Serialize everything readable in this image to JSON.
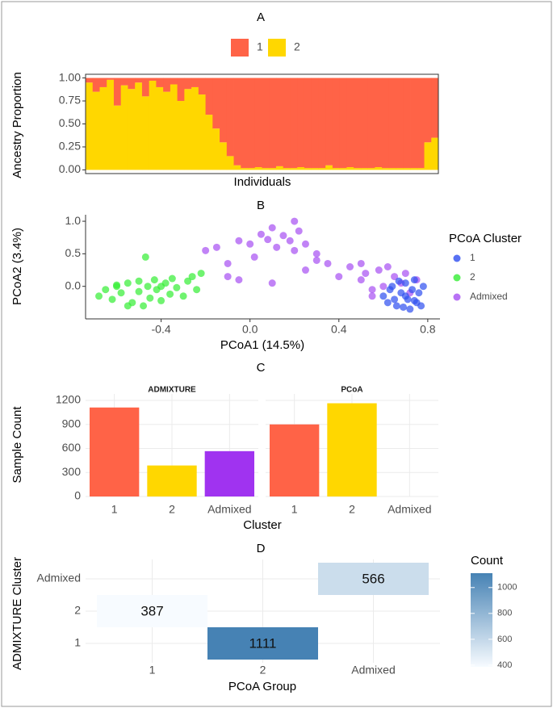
{
  "chart_data": [
    {
      "type": "stacked_bar",
      "title": "A",
      "ylabel": "Ancestry Proportion",
      "xlabel": "Individuals",
      "categories": [
        null,
        null,
        null,
        null,
        null,
        null,
        null,
        null,
        null,
        null,
        null,
        null,
        null,
        null,
        null,
        null,
        null,
        null,
        null,
        null,
        null,
        null,
        null,
        null,
        null,
        null,
        null,
        null,
        null,
        null,
        null,
        null,
        null,
        null,
        null,
        null,
        null,
        null,
        null,
        null,
        null,
        null,
        null,
        null,
        null,
        null,
        null,
        null,
        null,
        null
      ],
      "series": [
        {
          "name": "1",
          "color": "#FF6347",
          "values": [
            0.05,
            0.15,
            0.1,
            0.02,
            0.3,
            0.08,
            0.12,
            0.05,
            0.2,
            0.03,
            0.1,
            0.15,
            0.07,
            0.25,
            0.12,
            0.1,
            0.18,
            0.4,
            0.55,
            0.7,
            0.85,
            0.95,
            0.98,
            0.98,
            0.97,
            0.98,
            0.98,
            0.96,
            0.98,
            0.98,
            0.97,
            0.98,
            0.98,
            0.98,
            0.95,
            0.98,
            0.98,
            0.97,
            0.98,
            0.98,
            0.98,
            0.97,
            0.98,
            0.98,
            0.98,
            0.98,
            0.98,
            0.98,
            0.7,
            0.65
          ]
        },
        {
          "name": "2",
          "color": "#FFD700",
          "values": [
            0.95,
            0.85,
            0.9,
            0.98,
            0.7,
            0.92,
            0.88,
            0.95,
            0.8,
            0.97,
            0.9,
            0.85,
            0.93,
            0.75,
            0.88,
            0.9,
            0.82,
            0.6,
            0.45,
            0.3,
            0.15,
            0.05,
            0.02,
            0.02,
            0.03,
            0.02,
            0.02,
            0.04,
            0.02,
            0.02,
            0.03,
            0.02,
            0.02,
            0.02,
            0.05,
            0.02,
            0.02,
            0.03,
            0.02,
            0.02,
            0.02,
            0.03,
            0.02,
            0.02,
            0.02,
            0.02,
            0.02,
            0.02,
            0.3,
            0.35
          ]
        }
      ],
      "ylim": [
        -0.04,
        1.04
      ],
      "yticks": [
        {
          "value": 0,
          "label": "0.00"
        },
        0.25,
        {
          "value": 0.5,
          "label": "0.50"
        },
        0.75,
        {
          "value": 1,
          "label": "1.00"
        }
      ],
      "legend": "top"
    },
    {
      "type": "scatter",
      "title": "B",
      "xlabel": "PCoA1 (14.5%)",
      "ylabel": "PCoA2 (3.4%)",
      "legend_title": "PCoA Cluster",
      "series": [
        {
          "name": "1",
          "color": "#2E4EF0",
          "x": [
            0.6,
            0.62,
            0.64,
            0.66,
            0.68,
            0.7,
            0.71,
            0.72,
            0.73,
            0.74,
            0.75,
            0.76,
            0.77,
            0.65,
            0.69,
            0.78,
            0.63,
            0.7,
            0.74,
            0.67
          ],
          "y": [
            -0.15,
            -0.25,
            0.0,
            -0.3,
            -0.1,
            0.05,
            -0.2,
            -0.35,
            -0.05,
            0.1,
            -0.25,
            -0.1,
            -0.3,
            -0.2,
            -0.32,
            0.0,
            -0.05,
            -0.15,
            -0.22,
            0.08
          ]
        },
        {
          "name": "2",
          "color": "#33EE33",
          "x": [
            -0.68,
            -0.65,
            -0.62,
            -0.6,
            -0.58,
            -0.55,
            -0.53,
            -0.5,
            -0.5,
            -0.48,
            -0.46,
            -0.45,
            -0.43,
            -0.42,
            -0.4,
            -0.38,
            -0.36,
            -0.35,
            -0.33,
            -0.3,
            -0.28,
            -0.26,
            -0.24,
            -0.22,
            -0.47,
            -0.55,
            -0.6,
            -0.4
          ],
          "y": [
            -0.15,
            -0.05,
            -0.2,
            0.0,
            -0.1,
            0.05,
            -0.25,
            -0.08,
            0.08,
            -0.3,
            0.0,
            -0.18,
            0.1,
            -0.05,
            -0.22,
            0.05,
            -0.12,
            0.12,
            -0.02,
            -0.15,
            0.08,
            0.15,
            -0.05,
            0.2,
            0.45,
            -0.3,
            0.02,
            0.0
          ]
        },
        {
          "name": "Admixed",
          "color": "#A64FF2",
          "x": [
            -0.2,
            -0.15,
            -0.1,
            -0.05,
            0.0,
            0.02,
            0.05,
            0.08,
            0.1,
            0.12,
            0.15,
            0.18,
            0.2,
            0.22,
            0.25,
            0.3,
            0.35,
            0.4,
            -0.05,
            0.1,
            0.3,
            0.45,
            0.5,
            0.52,
            0.55,
            0.58,
            0.6,
            0.62,
            0.65,
            0.68,
            0.7,
            0.72,
            0.75,
            0.5,
            0.55,
            0.2,
            -0.1,
            0.25
          ],
          "y": [
            0.55,
            0.6,
            0.35,
            0.7,
            0.65,
            0.45,
            0.8,
            0.72,
            0.9,
            0.6,
            0.78,
            0.7,
            0.55,
            0.85,
            0.65,
            0.5,
            0.35,
            0.15,
            0.1,
            0.05,
            0.4,
            0.3,
            0.1,
            0.2,
            -0.05,
            0.25,
            0.0,
            0.3,
            0.15,
            0.05,
            0.2,
            -0.1,
            0.1,
            0.35,
            -0.15,
            1.0,
            0.15,
            0.25
          ]
        }
      ],
      "xlim": [
        -0.74,
        0.855
      ],
      "ylim": [
        -0.5,
        1.1
      ],
      "xticks": [
        -0.4,
        {
          "value": 0,
          "label": "0.0"
        },
        0.4,
        0.8
      ],
      "yticks": [
        {
          "value": 0,
          "label": "0.0"
        },
        0.5,
        {
          "value": 1,
          "label": "1.0"
        }
      ],
      "legend": "right"
    },
    {
      "type": "facet_bar",
      "title": "C",
      "xlabel": "Cluster",
      "ylabel": "Sample Count",
      "categories": [
        "1",
        "2",
        "Admixed"
      ],
      "colors": [
        "#FF6347",
        "#FFD700",
        "#A033F0"
      ],
      "facets": [
        {
          "title": "ADMIXTURE",
          "values": [
            1111,
            387,
            566
          ]
        },
        {
          "title": "PCoA",
          "values": [
            900,
            1164,
            0
          ]
        }
      ],
      "ylim": [
        0,
        1280
      ],
      "yticks": [
        0,
        300,
        600,
        900,
        1200
      ],
      "grid": true
    },
    {
      "type": "heatmap",
      "title": "D",
      "xlabel": "PCoA Group",
      "ylabel": "ADMIXTURE Cluster",
      "x_categories": [
        "1",
        "2",
        "Admixed"
      ],
      "y_categories": [
        "1",
        "2",
        "Admixed"
      ],
      "cells": [
        {
          "x": "2",
          "y": "1",
          "value": 1111
        },
        {
          "x": "1",
          "y": "2",
          "value": 387
        },
        {
          "x": "Admixed",
          "y": "Admixed",
          "value": 566
        }
      ],
      "legend_title": "Count",
      "colorlim": [
        387,
        1111
      ],
      "colorticks": [
        400,
        600,
        800,
        1000
      ],
      "colors": [
        "#F7FBFF",
        "#4682B4"
      ],
      "grid": true
    }
  ]
}
